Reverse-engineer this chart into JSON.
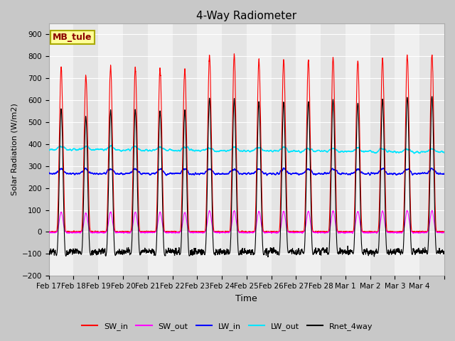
{
  "title": "4-Way Radiometer",
  "ylabel": "Solar Radiation (W/m2)",
  "xlabel": "Time",
  "ylim": [
    -200,
    950
  ],
  "yticks": [
    -200,
    -100,
    0,
    100,
    200,
    300,
    400,
    500,
    600,
    700,
    800,
    900
  ],
  "annotation": "MB_tule",
  "legend_labels": [
    "SW_in",
    "SW_out",
    "LW_in",
    "LW_out",
    "Rnet_4way"
  ],
  "legend_colors": [
    "#ff0000",
    "#ff00ff",
    "#0000ff",
    "#00e5ff",
    "#000000"
  ],
  "line_colors": {
    "SW_in": "#ff0000",
    "SW_out": "#ff00ff",
    "LW_in": "#0000ff",
    "LW_out": "#00e5ff",
    "Rnet_4way": "#000000"
  },
  "num_days": 16,
  "xtick_labels": [
    "Feb 17",
    "Feb 18",
    "Feb 19",
    "Feb 20",
    "Feb 21",
    "Feb 22",
    "Feb 23",
    "Feb 24",
    "Feb 25",
    "Feb 26",
    "Feb 27",
    "Feb 28",
    "Mar 1",
    "Mar 2",
    "Mar 3",
    "Mar 4"
  ],
  "plot_bg_light": "#f0f0f0",
  "plot_bg_dark": "#e0e0e0",
  "fig_bg": "#c8c8c8",
  "grid_color": "#ffffff"
}
